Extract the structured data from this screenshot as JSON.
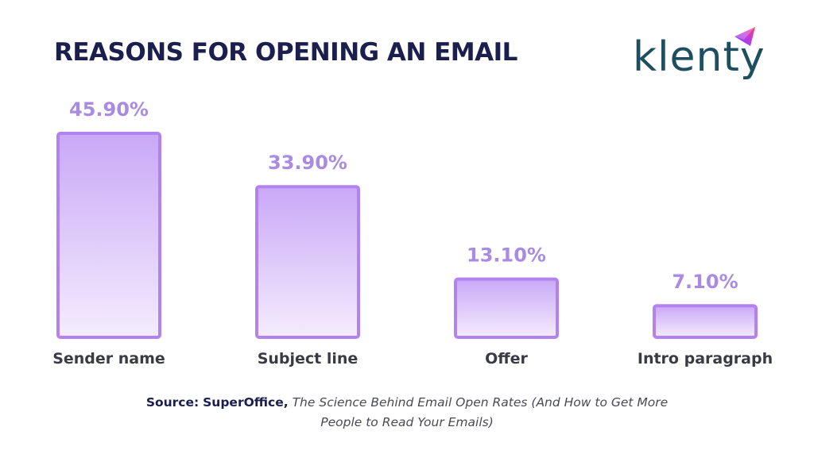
{
  "title": "REASONS FOR OPENING AN EMAIL",
  "logo": {
    "text": "klenty"
  },
  "source": {
    "label": "Source:",
    "name": "SuperOffice,",
    "work_line1": "The Science Behind Email Open Rates (And How to Get More",
    "work_line2": "People to Read Your Emails)"
  },
  "colors": {
    "bar_border": "#b283ee",
    "bar_top": "#c9a8f7",
    "bar_bottom": "#f4ecfd",
    "value_label": "#a98be3",
    "category_label": "#3a3a44",
    "title": "#1b1f4d"
  },
  "chart_data": {
    "type": "bar",
    "title": "REASONS FOR OPENING AN EMAIL",
    "categories": [
      "Sender name",
      "Subject line",
      "Offer",
      "Intro paragraph"
    ],
    "values": [
      45.9,
      33.9,
      13.1,
      7.1
    ],
    "value_labels": [
      "45.90%",
      "33.90%",
      "13.10%",
      "7.10%"
    ],
    "ylim": [
      0,
      45.9
    ],
    "grid": false,
    "legend": "none"
  }
}
